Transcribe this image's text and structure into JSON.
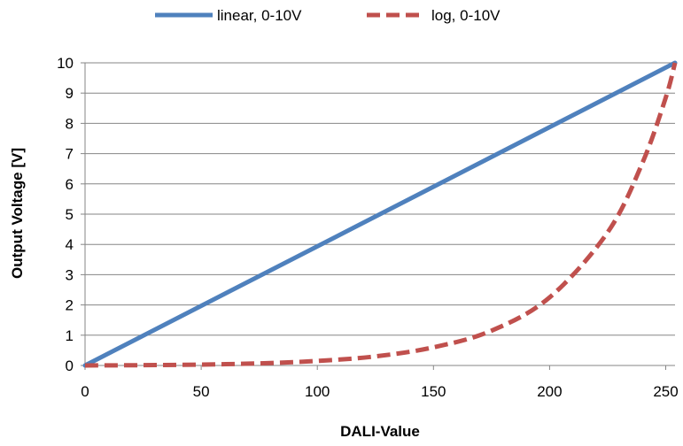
{
  "chart_data": {
    "type": "line",
    "title": "",
    "xlabel": "DALI-Value",
    "ylabel": "Output Voltage [V]",
    "xlim": [
      0,
      254
    ],
    "ylim": [
      0,
      10
    ],
    "x_ticks": [
      0,
      50,
      100,
      150,
      200,
      250
    ],
    "y_ticks": [
      0,
      1,
      2,
      3,
      4,
      5,
      6,
      7,
      8,
      9,
      10
    ],
    "grid": "horizontal",
    "legend_position": "top",
    "series": [
      {
        "name": "linear, 0-10V",
        "color": "#4F81BD",
        "style": "solid",
        "x": [
          0,
          254
        ],
        "y": [
          0,
          10
        ]
      },
      {
        "name": "log, 0-10V",
        "color": "#C0504D",
        "style": "dashed",
        "x": [
          0,
          25,
          50,
          75,
          100,
          125,
          150,
          175,
          200,
          225,
          240,
          250,
          254
        ],
        "y": [
          0.0,
          0.01,
          0.03,
          0.07,
          0.15,
          0.3,
          0.6,
          1.15,
          2.25,
          4.4,
          6.7,
          8.85,
          10.0
        ]
      }
    ]
  }
}
